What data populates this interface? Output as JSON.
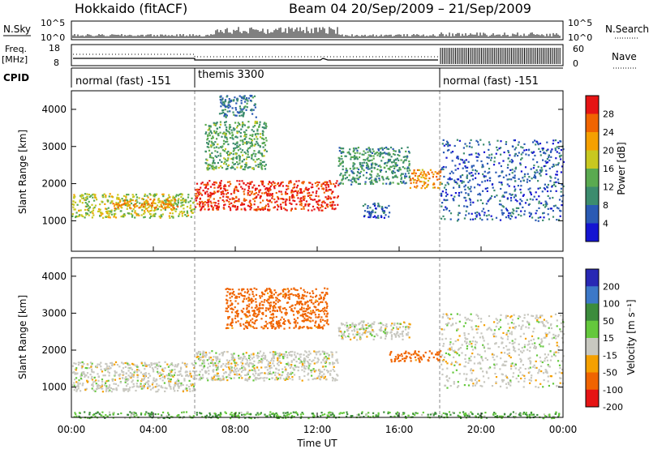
{
  "header": {
    "station": "Hokkaido (fitACF)",
    "beam_date": "Beam 04  20/Sep/2009 – 21/Sep/2009"
  },
  "nsky_panel": {
    "left_label": "N.Sky",
    "right_label": "N.Search",
    "left_ticks": [
      "10^5",
      "10^0"
    ],
    "right_ticks": [
      "10^5",
      "10^0"
    ]
  },
  "freq_panel": {
    "left_label_1": "Freq.",
    "left_label_2": "[MHz]",
    "right_label": "Nave",
    "left_ticks": [
      "18",
      "8"
    ],
    "right_ticks": [
      "60",
      "0"
    ]
  },
  "cpid_panel": {
    "label": "CPID",
    "segments": [
      "normal (fast) -151",
      "themis 3300",
      "normal (fast) -151"
    ]
  },
  "xaxis": {
    "title": "Time UT",
    "ticks": [
      "00:00",
      "04:00",
      "08:00",
      "12:00",
      "16:00",
      "20:00",
      "00:00"
    ]
  },
  "power_panel": {
    "ylabel": "Slant Range [km]",
    "yticks": [
      "1000",
      "2000",
      "3000",
      "4000"
    ],
    "colorbar_title": "Power [dB]",
    "colorbar_ticks": [
      "4",
      "8",
      "12",
      "16",
      "20",
      "24",
      "28"
    ]
  },
  "velocity_panel": {
    "ylabel": "Slant Range [km]",
    "yticks": [
      "1000",
      "2000",
      "3000",
      "4000"
    ],
    "colorbar_title": "Velocity [m s⁻¹]",
    "colorbar_ticks": [
      "200",
      "100",
      "50",
      "15",
      "-15",
      "-50",
      "-100",
      "-200"
    ]
  },
  "colors": {
    "power_scale": [
      "#1414d2",
      "#2a5ab4",
      "#3c8c6e",
      "#5aaa50",
      "#c8c820",
      "#f5a000",
      "#f06400",
      "#e61414"
    ],
    "velocity_scale": [
      "#2828b4",
      "#3c78c8",
      "#3c8c3c",
      "#64c83c",
      "#c8c8c0",
      "#f5a000",
      "#f06400",
      "#e61414"
    ]
  },
  "chart_data": [
    {
      "type": "heatmap",
      "title": "Power",
      "xlabel": "Time UT",
      "ylabel": "Slant Range [km]",
      "xlim": [
        0,
        24
      ],
      "ylim": [
        180,
        4500
      ],
      "zlabel": "Power [dB]",
      "zlim": [
        0,
        30
      ],
      "regions": [
        {
          "t": [
            0,
            6
          ],
          "range": [
            1100,
            1750
          ],
          "power": 16
        },
        {
          "t": [
            2,
            5.2
          ],
          "range": [
            1350,
            1600
          ],
          "power": 22
        },
        {
          "t": [
            6,
            13
          ],
          "range": [
            1300,
            2100
          ],
          "power": 27
        },
        {
          "t": [
            6.5,
            9.5
          ],
          "range": [
            2400,
            3700
          ],
          "power": 12
        },
        {
          "t": [
            7.2,
            9.0
          ],
          "range": [
            3800,
            4400
          ],
          "power": 8
        },
        {
          "t": [
            13,
            16.5
          ],
          "range": [
            2000,
            3000
          ],
          "power": 10
        },
        {
          "t": [
            16.5,
            18
          ],
          "range": [
            1900,
            2400
          ],
          "power": 22
        },
        {
          "t": [
            14.2,
            15.5
          ],
          "range": [
            1100,
            1500
          ],
          "power": 6
        },
        {
          "t": [
            18,
            24
          ],
          "range": [
            1000,
            3200
          ],
          "power": 6
        }
      ]
    },
    {
      "type": "heatmap",
      "title": "Velocity",
      "xlabel": "Time UT",
      "ylabel": "Slant Range [km]",
      "xlim": [
        0,
        24
      ],
      "ylim": [
        180,
        4500
      ],
      "zlabel": "Velocity [m s-1]",
      "zlim": [
        -200,
        200
      ],
      "regions": [
        {
          "t": [
            0,
            6
          ],
          "range": [
            900,
            1700
          ],
          "velocity": 0
        },
        {
          "t": [
            6,
            13
          ],
          "range": [
            1200,
            2000
          ],
          "velocity": 0
        },
        {
          "t": [
            7.5,
            12.5
          ],
          "range": [
            2600,
            3700
          ],
          "velocity": -50
        },
        {
          "t": [
            13,
            16.5
          ],
          "range": [
            2300,
            2800
          ],
          "velocity": 0
        },
        {
          "t": [
            15.5,
            18
          ],
          "range": [
            1700,
            2000
          ],
          "velocity": -50
        },
        {
          "t": [
            18,
            24
          ],
          "range": [
            1000,
            3000
          ],
          "velocity": 0
        },
        {
          "t": [
            0,
            24
          ],
          "range": [
            180,
            350
          ],
          "velocity": 30
        }
      ]
    }
  ]
}
